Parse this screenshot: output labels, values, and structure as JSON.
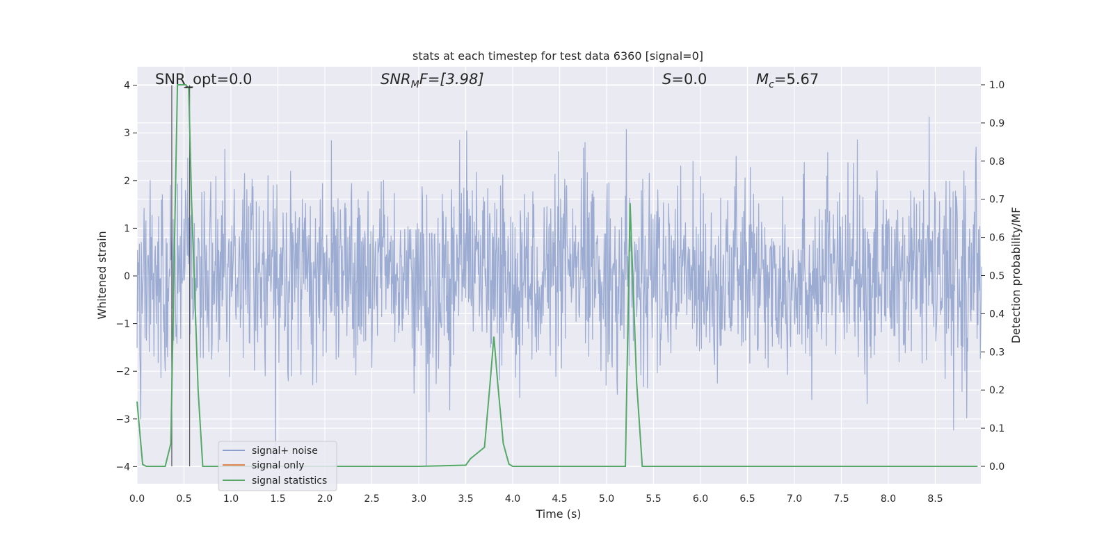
{
  "chart_data": {
    "type": "line",
    "title": "stats at each timestep for test data 6360 [signal=0]",
    "xlabel": "Time (s)",
    "ylabel_left": "Whitened strain",
    "ylabel_right": "Detection probability/MF",
    "xlim": [
      0.0,
      9.0
    ],
    "ylim_left": [
      -4.35,
      4.35
    ],
    "ylim_right": [
      -0.047,
      1.047
    ],
    "x_ticks": [
      "0.0",
      "0.5",
      "1.0",
      "1.5",
      "2.0",
      "2.5",
      "3.0",
      "3.5",
      "4.0",
      "4.5",
      "5.0",
      "5.5",
      "6.0",
      "6.5",
      "7.0",
      "7.5",
      "8.0",
      "8.5"
    ],
    "y_ticks_left": [
      "4",
      "3",
      "2",
      "1",
      "0",
      "−1",
      "−2",
      "−3",
      "−4"
    ],
    "y_ticks_right": [
      "1.0",
      "0.9",
      "0.8",
      "0.7",
      "0.6",
      "0.5",
      "0.4",
      "0.3",
      "0.2",
      "0.1",
      "0.0"
    ],
    "grid": true,
    "legend_position": "lower-left",
    "annotations": {
      "snr_opt": "SNR_opt=0.0",
      "snr_mf_main": "SNR",
      "snr_mf_sub": "M",
      "snr_mf_tail": "F=[3.98]",
      "s_main": "S",
      "s_tail": "=0.0",
      "mc_main": "M",
      "mc_sub": "c",
      "mc_tail": "=5.67"
    },
    "markers": [
      0.37,
      0.56
    ],
    "series": [
      {
        "name": "signal+ noise",
        "color": "#8da0cb",
        "axis": "left",
        "t_start": 0.0,
        "t_end": 9.0,
        "samples": 1800,
        "typical_amplitude": 1.75,
        "peak_amplitude": 4.0
      },
      {
        "name": "signal only",
        "color": "#dd8452",
        "axis": "left",
        "values": []
      },
      {
        "name": "signal statistics",
        "color": "#55a868",
        "axis": "right",
        "x": [
          0.0,
          0.06,
          0.1,
          0.2,
          0.3,
          0.36,
          0.4,
          0.43,
          0.47,
          0.52,
          0.55,
          0.58,
          0.65,
          0.7,
          1.0,
          2.0,
          3.0,
          3.5,
          3.55,
          3.6,
          3.7,
          3.76,
          3.8,
          3.84,
          3.9,
          3.96,
          4.0,
          4.5,
          5.0,
          5.2,
          5.25,
          5.32,
          5.38,
          6.0,
          7.0,
          8.0,
          8.95
        ],
        "values": [
          0.17,
          0.005,
          0.0,
          0.0,
          0.0,
          0.06,
          0.6,
          1.0,
          1.0,
          1.0,
          0.99,
          0.7,
          0.2,
          0.0,
          0.0,
          0.0,
          0.0,
          0.003,
          0.02,
          0.03,
          0.05,
          0.22,
          0.34,
          0.22,
          0.06,
          0.006,
          0.0,
          0.0,
          0.0,
          0.0,
          0.69,
          0.22,
          0.0,
          0.0,
          0.0,
          0.0,
          0.0
        ]
      }
    ]
  }
}
